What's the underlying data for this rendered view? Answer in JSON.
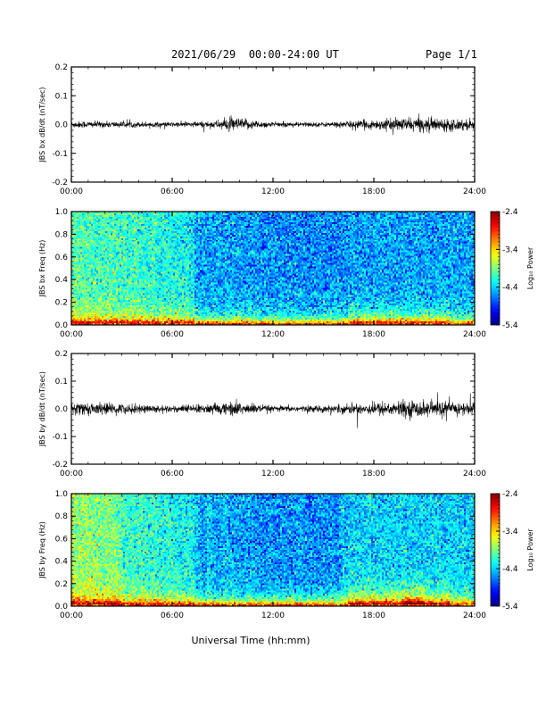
{
  "header": {
    "title": "2021/06/29  00:00-24:00 UT",
    "page": "Page 1/1"
  },
  "chart_data": [
    {
      "type": "line",
      "ylabel": "JBS bx dB/dt (nT/sec)",
      "xlabel": "",
      "xlim": [
        0,
        24
      ],
      "ylim": [
        -0.2,
        0.2
      ],
      "xticklabels": [
        "00:00",
        "06:00",
        "12:00",
        "18:00",
        "24:00"
      ],
      "yticklabels": [
        "0.2",
        "0.1",
        "0.0",
        "-0.1",
        "-0.2"
      ],
      "series_color": "#000000",
      "envelope_note_hours": [
        0,
        3,
        6,
        8.5,
        9.5,
        12,
        15,
        18,
        20.5,
        24
      ],
      "amplitude": [
        0.006,
        0.005,
        0.004,
        0.006,
        0.012,
        0.004,
        0.004,
        0.008,
        0.012,
        0.009
      ]
    },
    {
      "type": "heatmap",
      "ylabel": "JBS bx Freq (Hz)",
      "xlim": [
        0,
        24
      ],
      "ylim": [
        0.0,
        1.0
      ],
      "xticklabels": [
        "00:00",
        "06:00",
        "12:00",
        "18:00",
        "24:00"
      ],
      "yticklabels": [
        "1.0",
        "0.8",
        "0.6",
        "0.4",
        "0.2",
        "0.0"
      ],
      "colorbar": {
        "label": "Log₁₀ Power",
        "range": [
          -5.4,
          -2.4
        ],
        "ticklabels": [
          "-2.4",
          "-3.4",
          "-4.4",
          "-5.4"
        ]
      }
    },
    {
      "type": "line",
      "ylabel": "JBS by dB/dt (nT/sec)",
      "xlabel": "",
      "xlim": [
        0,
        24
      ],
      "ylim": [
        -0.2,
        0.2
      ],
      "xticklabels": [
        "00:00",
        "06:00",
        "12:00",
        "18:00",
        "24:00"
      ],
      "yticklabels": [
        "0.2",
        "0.1",
        "0.0",
        "-0.1",
        "-0.2"
      ],
      "series_color": "#000000",
      "envelope_note_hours": [
        0,
        3,
        6,
        8.5,
        9.5,
        12,
        15,
        18,
        20.5,
        24
      ],
      "amplitude": [
        0.012,
        0.009,
        0.006,
        0.009,
        0.013,
        0.005,
        0.006,
        0.011,
        0.015,
        0.011
      ]
    },
    {
      "type": "heatmap",
      "ylabel": "JBS by Freq (Hz)",
      "xlabel": "Universal Time (hh:mm)",
      "xlim": [
        0,
        24
      ],
      "ylim": [
        0.0,
        1.0
      ],
      "xticklabels": [
        "00:00",
        "06:00",
        "12:00",
        "18:00",
        "24:00"
      ],
      "yticklabels": [
        "1.0",
        "0.8",
        "0.6",
        "0.4",
        "0.2",
        "0.0"
      ],
      "colorbar": {
        "label": "Log₁₀ Power",
        "range": [
          -5.4,
          -2.4
        ],
        "ticklabels": [
          "-2.4",
          "-3.4",
          "-4.4",
          "-5.4"
        ]
      }
    }
  ]
}
